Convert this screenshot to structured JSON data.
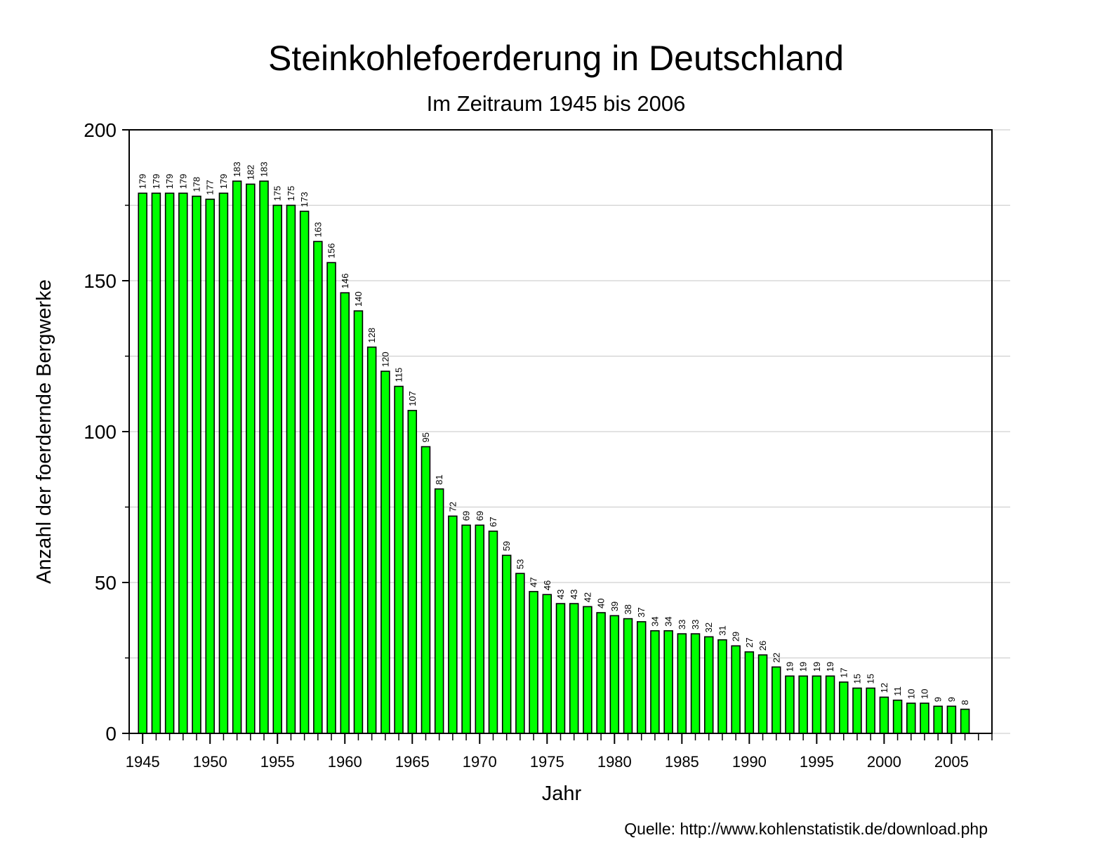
{
  "chart_data": {
    "type": "bar",
    "title": "Steinkohlefoerderung in Deutschland",
    "subtitle": "Im Zeitraum 1945 bis 2006",
    "xlabel": "Jahr",
    "ylabel": "Anzahl der foerdernde Bergwerke",
    "source": "Quelle: http://www.kohlenstatistik.de/download.php",
    "ylim": [
      0,
      200
    ],
    "yticks": [
      0,
      50,
      100,
      150,
      200
    ],
    "xlim": [
      1944,
      2008
    ],
    "xticks": [
      1945,
      1950,
      1955,
      1960,
      1965,
      1970,
      1975,
      1980,
      1985,
      1990,
      1995,
      2000,
      2005
    ],
    "grid": true,
    "bar_color": "#00ff00",
    "x": [
      1945,
      1946,
      1947,
      1948,
      1949,
      1950,
      1951,
      1952,
      1953,
      1954,
      1955,
      1956,
      1957,
      1958,
      1959,
      1960,
      1961,
      1962,
      1963,
      1964,
      1965,
      1966,
      1967,
      1968,
      1969,
      1970,
      1971,
      1972,
      1973,
      1974,
      1975,
      1976,
      1977,
      1978,
      1979,
      1980,
      1981,
      1982,
      1983,
      1984,
      1985,
      1986,
      1987,
      1988,
      1989,
      1990,
      1991,
      1992,
      1993,
      1994,
      1995,
      1996,
      1997,
      1998,
      1999,
      2000,
      2001,
      2002,
      2003,
      2004,
      2005,
      2006
    ],
    "values": [
      179,
      179,
      179,
      179,
      178,
      177,
      179,
      183,
      182,
      183,
      175,
      175,
      173,
      163,
      156,
      146,
      140,
      128,
      120,
      115,
      107,
      95,
      81,
      72,
      69,
      69,
      67,
      59,
      53,
      47,
      46,
      43,
      43,
      42,
      40,
      39,
      38,
      37,
      34,
      34,
      33,
      33,
      32,
      31,
      29,
      27,
      26,
      22,
      19,
      19,
      19,
      19,
      17,
      15,
      15,
      12,
      11,
      10,
      10,
      9,
      9,
      8
    ]
  }
}
